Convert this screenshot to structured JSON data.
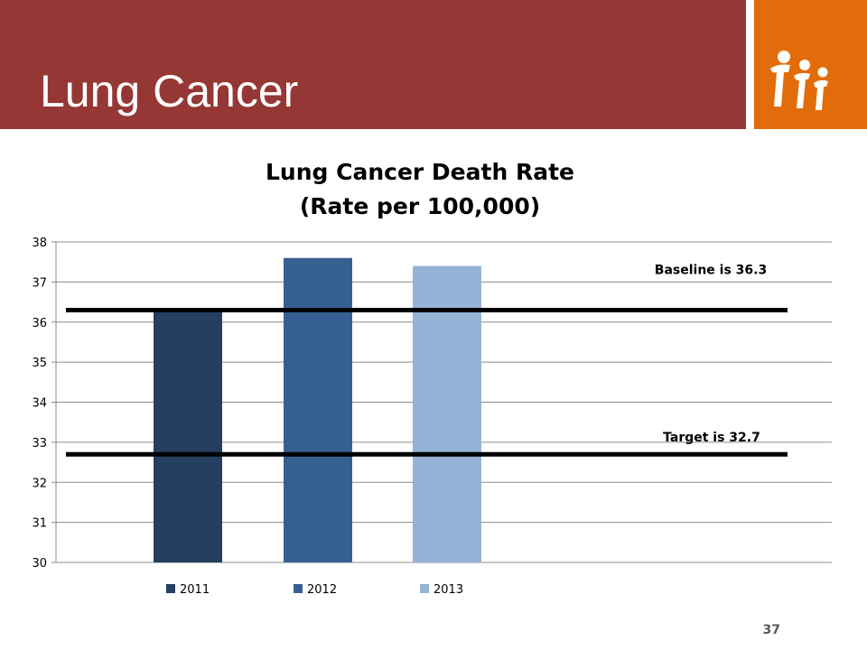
{
  "slide": {
    "title": "Lung Cancer",
    "page_number": "37",
    "logo_icon": "three-people-icon",
    "colors": {
      "header": "#953735",
      "logo_bg": "#e36c0a"
    }
  },
  "chart_data": {
    "type": "bar",
    "title_line1": "Lung Cancer Death Rate",
    "title_line2": "(Rate per 100,000)",
    "series": [
      {
        "name": "2011",
        "value": 36.3,
        "color": "#243f60"
      },
      {
        "name": "2012",
        "value": 37.6,
        "color": "#376092"
      },
      {
        "name": "2013",
        "value": 37.4,
        "color": "#95b3d7"
      }
    ],
    "ylim": [
      30,
      38
    ],
    "yticks": [
      30,
      31,
      32,
      33,
      34,
      35,
      36,
      37,
      38
    ],
    "grid": true,
    "legend": "bottom",
    "reference_lines": [
      {
        "value": 36.3,
        "label": "Baseline is 36.3"
      },
      {
        "value": 32.7,
        "label": "Target is 32.7"
      }
    ]
  }
}
